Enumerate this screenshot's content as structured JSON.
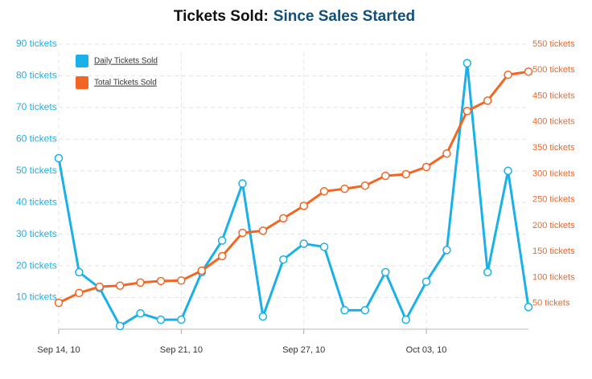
{
  "chart_data": {
    "type": "line",
    "title": "Tickets Sold:",
    "subtitle": "Since Sales Started",
    "categories": [
      "Sep 14, 10",
      null,
      null,
      null,
      null,
      null,
      "Sep 21, 10",
      null,
      null,
      null,
      null,
      null,
      "Sep 27, 10",
      null,
      null,
      null,
      null,
      null,
      "Oct 03, 10",
      null,
      null,
      null,
      null,
      null
    ],
    "series": [
      {
        "name": "Daily Tickets Sold",
        "color": "#1ab0e8",
        "values": [
          54,
          18,
          13,
          1,
          5,
          3,
          3,
          18,
          28,
          46,
          4,
          22,
          27,
          26,
          6,
          6,
          18,
          3,
          15,
          25,
          84,
          18,
          50,
          7
        ]
      },
      {
        "name": "Total Tickets Sold",
        "color": "#f26522",
        "axis": "y2",
        "values": [
          51,
          70,
          82,
          84,
          90,
          93,
          94,
          113,
          141,
          186,
          190,
          214,
          238,
          266,
          271,
          277,
          296,
          299,
          313,
          339,
          421,
          441,
          491,
          497
        ]
      }
    ],
    "ylim": [
      0,
      90
    ],
    "yticks": [
      {
        "value": 10,
        "label": "10 tickets"
      },
      {
        "value": 20,
        "label": "20 tickets"
      },
      {
        "value": 30,
        "label": "30 tickets"
      },
      {
        "value": 40,
        "label": "40 tickets"
      },
      {
        "value": 50,
        "label": "50 tickets"
      },
      {
        "value": 60,
        "label": "60 tickets"
      },
      {
        "value": 70,
        "label": "70 tickets"
      },
      {
        "value": 80,
        "label": "80 tickets"
      },
      {
        "value": 90,
        "label": "90 tickets"
      }
    ],
    "y2lim": [
      0,
      550
    ],
    "y2ticks": [
      {
        "value": 50,
        "label": "50 tickets"
      },
      {
        "value": 100,
        "label": "100 tickets"
      },
      {
        "value": 150,
        "label": "150 tickets"
      },
      {
        "value": 200,
        "label": "200 tickets"
      },
      {
        "value": 250,
        "label": "250 tickets"
      },
      {
        "value": 300,
        "label": "300 tickets"
      },
      {
        "value": 350,
        "label": "350 tickets"
      },
      {
        "value": 400,
        "label": "400 tickets"
      },
      {
        "value": 450,
        "label": "450 tickets"
      },
      {
        "value": 500,
        "label": "500 tickets"
      },
      {
        "value": 550,
        "label": "550 tickets"
      }
    ],
    "grid": true,
    "legend": "top-left"
  }
}
